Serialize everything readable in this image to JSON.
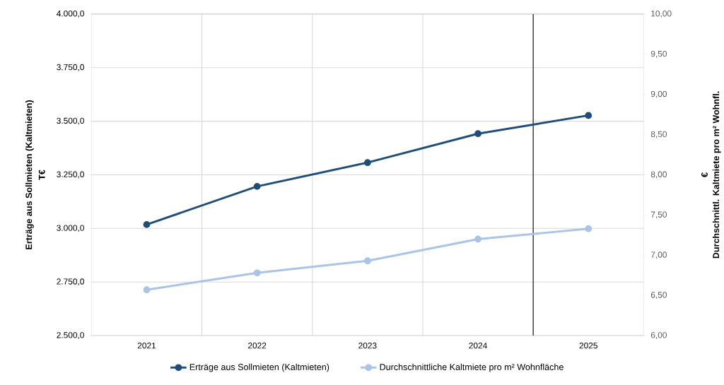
{
  "chart_data": {
    "type": "line",
    "x": [
      2021,
      2022,
      2023,
      2024,
      2025
    ],
    "xlim": [
      2020.5,
      2025.5
    ],
    "xticks": [
      2021,
      2022,
      2023,
      2024,
      2025
    ],
    "ylabel": "Erträge aus Sollmieten (Kaltmieten)",
    "y2label": "Durchschnittl. Kaltmiete pro m² Wohnfl.",
    "annotations": [
      "T€",
      "€"
    ],
    "ylim": [
      2500,
      4000
    ],
    "yticks": [
      {
        "value": 2500,
        "label": "2.500,0"
      },
      {
        "value": 2750,
        "label": "2.750,0"
      },
      {
        "value": 3000,
        "label": "3.000,0"
      },
      {
        "value": 3250,
        "label": "3.250,0"
      },
      {
        "value": 3500,
        "label": "3.500,0"
      },
      {
        "value": 3750,
        "label": "3.750,0"
      },
      {
        "value": 4000,
        "label": "4.000,0"
      }
    ],
    "y2lim": [
      6,
      10
    ],
    "y2ticks": [
      {
        "value": 6,
        "label": "6,00"
      },
      {
        "value": 6.5,
        "label": "6,50"
      },
      {
        "value": 7,
        "label": "7,00"
      },
      {
        "value": 7.5,
        "label": "7,50"
      },
      {
        "value": 8,
        "label": "8,00"
      },
      {
        "value": 8.5,
        "label": "8,50"
      },
      {
        "value": 9,
        "label": "9,00"
      },
      {
        "value": 9.5,
        "label": "9,50"
      },
      {
        "value": 10,
        "label": "10,00"
      }
    ],
    "series": [
      {
        "name": "Erträge aus Sollmieten (Kaltmieten)",
        "color": "#1f4e79",
        "values": [
          3018,
          3196,
          3307,
          3442,
          3527
        ]
      },
      {
        "name": "Durchschnittliche Kaltmiete pro m² Wohnfläche",
        "color": "#a9c4e6",
        "axis": "y2",
        "values": [
          6.57,
          6.78,
          6.93,
          7.2,
          7.33
        ]
      }
    ],
    "ref_lines": [
      {
        "axis": "x",
        "value": 2024.5,
        "color": "#000000"
      }
    ],
    "grid": true,
    "legend": "bottom",
    "marker": "circle",
    "line_style": "solid"
  }
}
